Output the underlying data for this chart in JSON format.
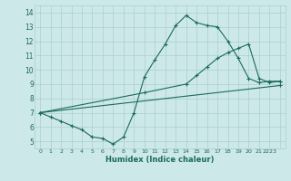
{
  "line1_x": [
    0,
    1,
    2,
    3,
    4,
    5,
    6,
    7,
    8,
    9,
    10,
    11,
    12,
    13,
    14,
    15,
    16,
    17,
    18,
    19,
    20,
    21,
    22,
    23
  ],
  "line1_y": [
    7.0,
    6.7,
    6.4,
    6.1,
    5.8,
    5.3,
    5.2,
    4.8,
    5.3,
    7.0,
    9.5,
    10.7,
    11.8,
    13.1,
    13.8,
    13.3,
    13.1,
    13.0,
    12.0,
    10.8,
    9.4,
    9.1,
    9.2,
    9.2
  ],
  "line2_x": [
    0,
    10,
    14,
    15,
    16,
    17,
    18,
    19,
    20,
    21,
    22,
    23
  ],
  "line2_y": [
    7.0,
    8.4,
    9.0,
    9.6,
    10.2,
    10.8,
    11.2,
    11.5,
    11.8,
    9.4,
    9.1,
    9.2
  ],
  "line3_x": [
    0,
    23
  ],
  "line3_y": [
    7.0,
    8.9
  ],
  "line_color": "#1a6b5c",
  "bg_color": "#cde8e8",
  "grid_color": "#aacfcf",
  "xlabel": "Humidex (Indice chaleur)",
  "ylim": [
    4.5,
    14.5
  ],
  "xlim": [
    -0.5,
    23.5
  ],
  "yticks": [
    5,
    6,
    7,
    8,
    9,
    10,
    11,
    12,
    13,
    14
  ],
  "xtick_labels": [
    "0",
    "1",
    "2",
    "3",
    "4",
    "5",
    "6",
    "7",
    "8",
    "9",
    "10",
    "11",
    "12",
    "13",
    "14",
    "15",
    "16",
    "17",
    "18",
    "19",
    "20",
    "21",
    "2223",
    ""
  ],
  "marker": "+"
}
